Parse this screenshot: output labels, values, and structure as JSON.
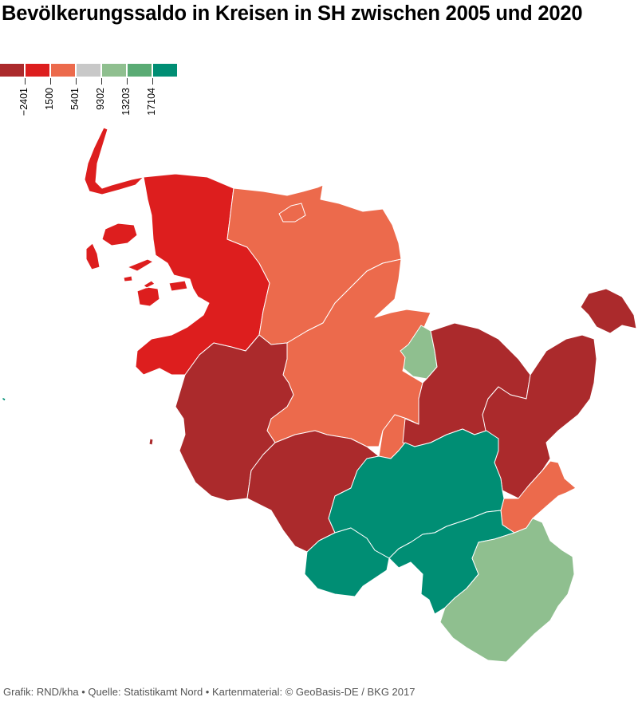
{
  "title": "Bevölkerungssaldo in Kreisen in SH zwischen 2005 und 2020",
  "legend": {
    "colors": [
      "#ab2a2c",
      "#dd1e1e",
      "#ec6a4c",
      "#c8c8c8",
      "#8fbf8f",
      "#5aab74",
      "#008e74"
    ],
    "tick_labels": [
      "−2401",
      "1500",
      "5401",
      "9302",
      "13203",
      "17104"
    ]
  },
  "regions": [
    {
      "name": "Nordfriesland",
      "color": "#dd1e1e"
    },
    {
      "name": "Schleswig-Flensburg",
      "color": "#ec6a4c"
    },
    {
      "name": "Flensburg",
      "color": "#ec6a4c"
    },
    {
      "name": "Rendsburg-Eckernförde",
      "color": "#ec6a4c"
    },
    {
      "name": "Kiel",
      "color": "#8fbf8f"
    },
    {
      "name": "Plön",
      "color": "#ab2a2c"
    },
    {
      "name": "Ostholstein",
      "color": "#ab2a2c"
    },
    {
      "name": "Dithmarschen",
      "color": "#ab2a2c"
    },
    {
      "name": "Steinburg",
      "color": "#ab2a2c"
    },
    {
      "name": "Neumünster",
      "color": "#ec6a4c"
    },
    {
      "name": "Segeberg",
      "color": "#008e74"
    },
    {
      "name": "Pinneberg",
      "color": "#008e74"
    },
    {
      "name": "Stormarn",
      "color": "#008e74"
    },
    {
      "name": "Lübeck",
      "color": "#ec6a4c"
    },
    {
      "name": "Herzogtum Lauenburg",
      "color": "#8fbf8f"
    },
    {
      "name": "Helgoland",
      "color": "#008e74"
    }
  ],
  "footer": "Grafik: RND/kha • Quelle: Statistikamt Nord • Kartenmaterial: © GeoBasis-DE / BKG 2017"
}
